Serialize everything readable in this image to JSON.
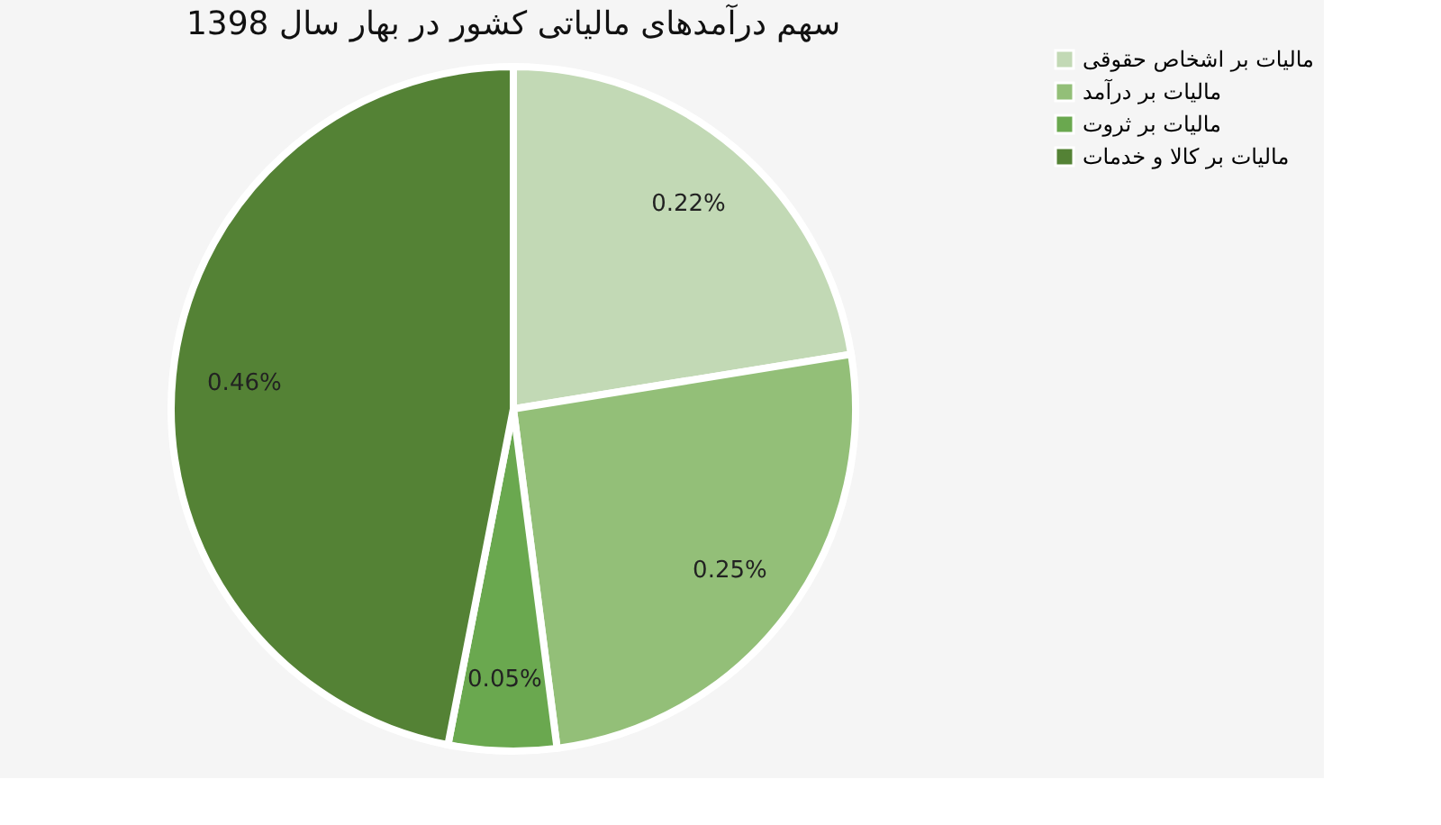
{
  "chart_data": {
    "type": "pie",
    "title": "سهم درآمدهای مالیاتی کشور در بهار سال 1398",
    "categories": [
      "مالیات بر اشخاص حقوقی",
      "مالیات بر درآمد",
      "مالیات بر ثروت",
      "مالیات بر کالا و خدمات"
    ],
    "values": [
      0.22,
      0.25,
      0.05,
      0.46
    ],
    "colors": [
      "#c2d9b5",
      "#93bf78",
      "#6aa84f",
      "#548235"
    ],
    "value_labels": [
      "0.22%",
      "0.25%",
      "0.05%",
      "0.46%"
    ],
    "legend": "top right"
  }
}
